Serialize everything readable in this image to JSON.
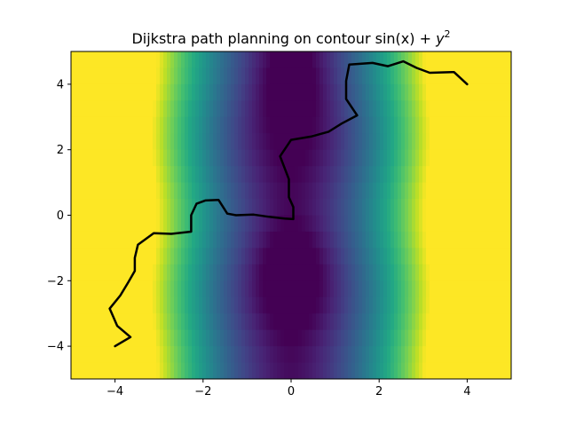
{
  "chart_data": {
    "type": "heatmap",
    "title": {
      "prefix": "Dijkstra path planning on contour ",
      "sin": "sin",
      "x_in_paren": "(x) + ",
      "y_var": "y",
      "exponent": "2"
    },
    "function": "sin(x) + y^2",
    "xlim": [
      -5,
      5
    ],
    "ylim": [
      -5,
      5
    ],
    "x_ticks": [
      -4,
      -2,
      0,
      2,
      4
    ],
    "y_ticks": [
      -4,
      -2,
      0,
      2,
      4
    ],
    "x_tick_labels": [
      "−4",
      "−2",
      "0",
      "2",
      "4"
    ],
    "y_tick_labels": [
      "−4",
      "−2",
      "0",
      "2",
      "4"
    ],
    "xlabel": "",
    "ylabel": "",
    "colormap": "viridis",
    "grid": false,
    "path": {
      "color": "#000000",
      "points": [
        [
          -4.0,
          -4.0
        ],
        [
          -3.65,
          -3.72
        ],
        [
          -3.95,
          -3.38
        ],
        [
          -4.12,
          -2.85
        ],
        [
          -3.88,
          -2.45
        ],
        [
          -3.7,
          -2.05
        ],
        [
          -3.55,
          -1.7
        ],
        [
          -3.55,
          -1.3
        ],
        [
          -3.48,
          -0.9
        ],
        [
          -3.12,
          -0.55
        ],
        [
          -2.72,
          -0.57
        ],
        [
          -2.27,
          -0.5
        ],
        [
          -2.27,
          0.0
        ],
        [
          -2.15,
          0.35
        ],
        [
          -1.95,
          0.45
        ],
        [
          -1.65,
          0.47
        ],
        [
          -1.45,
          0.05
        ],
        [
          -1.25,
          0.0
        ],
        [
          -0.85,
          0.02
        ],
        [
          -0.5,
          -0.05
        ],
        [
          -0.15,
          -0.1
        ],
        [
          0.05,
          -0.12
        ],
        [
          0.05,
          0.25
        ],
        [
          -0.05,
          0.55
        ],
        [
          -0.05,
          1.1
        ],
        [
          -0.25,
          1.8
        ],
        [
          0.0,
          2.3
        ],
        [
          0.45,
          2.4
        ],
        [
          0.85,
          2.55
        ],
        [
          1.15,
          2.8
        ],
        [
          1.5,
          3.05
        ],
        [
          1.25,
          3.55
        ],
        [
          1.25,
          4.1
        ],
        [
          1.32,
          4.6
        ],
        [
          1.85,
          4.65
        ],
        [
          2.2,
          4.55
        ],
        [
          2.55,
          4.7
        ],
        [
          2.85,
          4.5
        ],
        [
          3.15,
          4.35
        ],
        [
          3.7,
          4.37
        ],
        [
          4.0,
          4.0
        ]
      ]
    }
  }
}
